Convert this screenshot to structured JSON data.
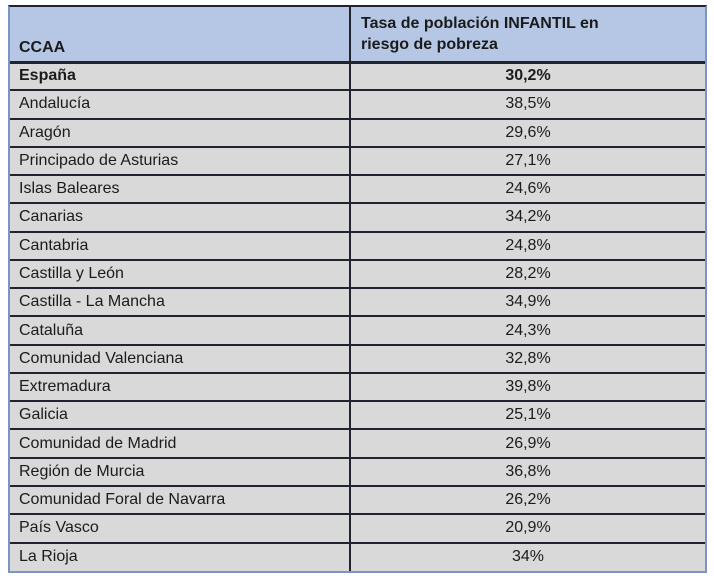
{
  "colors": {
    "header_bg": "#b5c7e4",
    "row_bg": "#d9d9d9",
    "grid_dark": "#20242e",
    "outer_blue": "#7a94c4",
    "text": "#1b1b1b"
  },
  "table": {
    "header": {
      "col1": "CCAA",
      "col2_line1": "Tasa de población INFANTIL en",
      "col2_line2": "riesgo de pobreza"
    },
    "rows": [
      {
        "region": "España",
        "value": "30,2%",
        "bold": true
      },
      {
        "region": "Andalucía",
        "value": "38,5%",
        "bold": false
      },
      {
        "region": "Aragón",
        "value": "29,6%",
        "bold": false
      },
      {
        "region": "Principado de Asturias",
        "value": "27,1%",
        "bold": false
      },
      {
        "region": "Islas Baleares",
        "value": "24,6%",
        "bold": false
      },
      {
        "region": "Canarias",
        "value": "34,2%",
        "bold": false
      },
      {
        "region": "Cantabria",
        "value": "24,8%",
        "bold": false
      },
      {
        "region": "Castilla y León",
        "value": "28,2%",
        "bold": false
      },
      {
        "region": "Castilla - La Mancha",
        "value": "34,9%",
        "bold": false
      },
      {
        "region": "Cataluña",
        "value": "24,3%",
        "bold": false
      },
      {
        "region": "Comunidad Valenciana",
        "value": "32,8%",
        "bold": false
      },
      {
        "region": "Extremadura",
        "value": "39,8%",
        "bold": false
      },
      {
        "region": "Galicia",
        "value": "25,1%",
        "bold": false
      },
      {
        "region": "Comunidad de Madrid",
        "value": "26,9%",
        "bold": false
      },
      {
        "region": "Región de Murcia",
        "value": "36,8%",
        "bold": false
      },
      {
        "region": "Comunidad Foral de Navarra",
        "value": "26,2%",
        "bold": false
      },
      {
        "region": "País Vasco",
        "value": "20,9%",
        "bold": false
      },
      {
        "region": "La Rioja",
        "value": "34%",
        "bold": false
      }
    ]
  },
  "chart_data": {
    "type": "table",
    "title": "Tasa de población INFANTIL en riesgo de pobreza",
    "columns": [
      "CCAA",
      "Tasa de población INFANTIL en riesgo de pobreza"
    ],
    "categories": [
      "España",
      "Andalucía",
      "Aragón",
      "Principado de Asturias",
      "Islas Baleares",
      "Canarias",
      "Cantabria",
      "Castilla y León",
      "Castilla - La Mancha",
      "Cataluña",
      "Comunidad Valenciana",
      "Extremadura",
      "Galicia",
      "Comunidad de Madrid",
      "Región de Murcia",
      "Comunidad Foral de Navarra",
      "País Vasco",
      "La Rioja"
    ],
    "values": [
      30.2,
      38.5,
      29.6,
      27.1,
      24.6,
      34.2,
      24.8,
      28.2,
      34.9,
      24.3,
      32.8,
      39.8,
      25.1,
      26.9,
      36.8,
      26.2,
      20.9,
      34
    ],
    "value_unit": "%",
    "value_format": "decimal comma, one decimal (La Rioja shown without decimals)"
  }
}
